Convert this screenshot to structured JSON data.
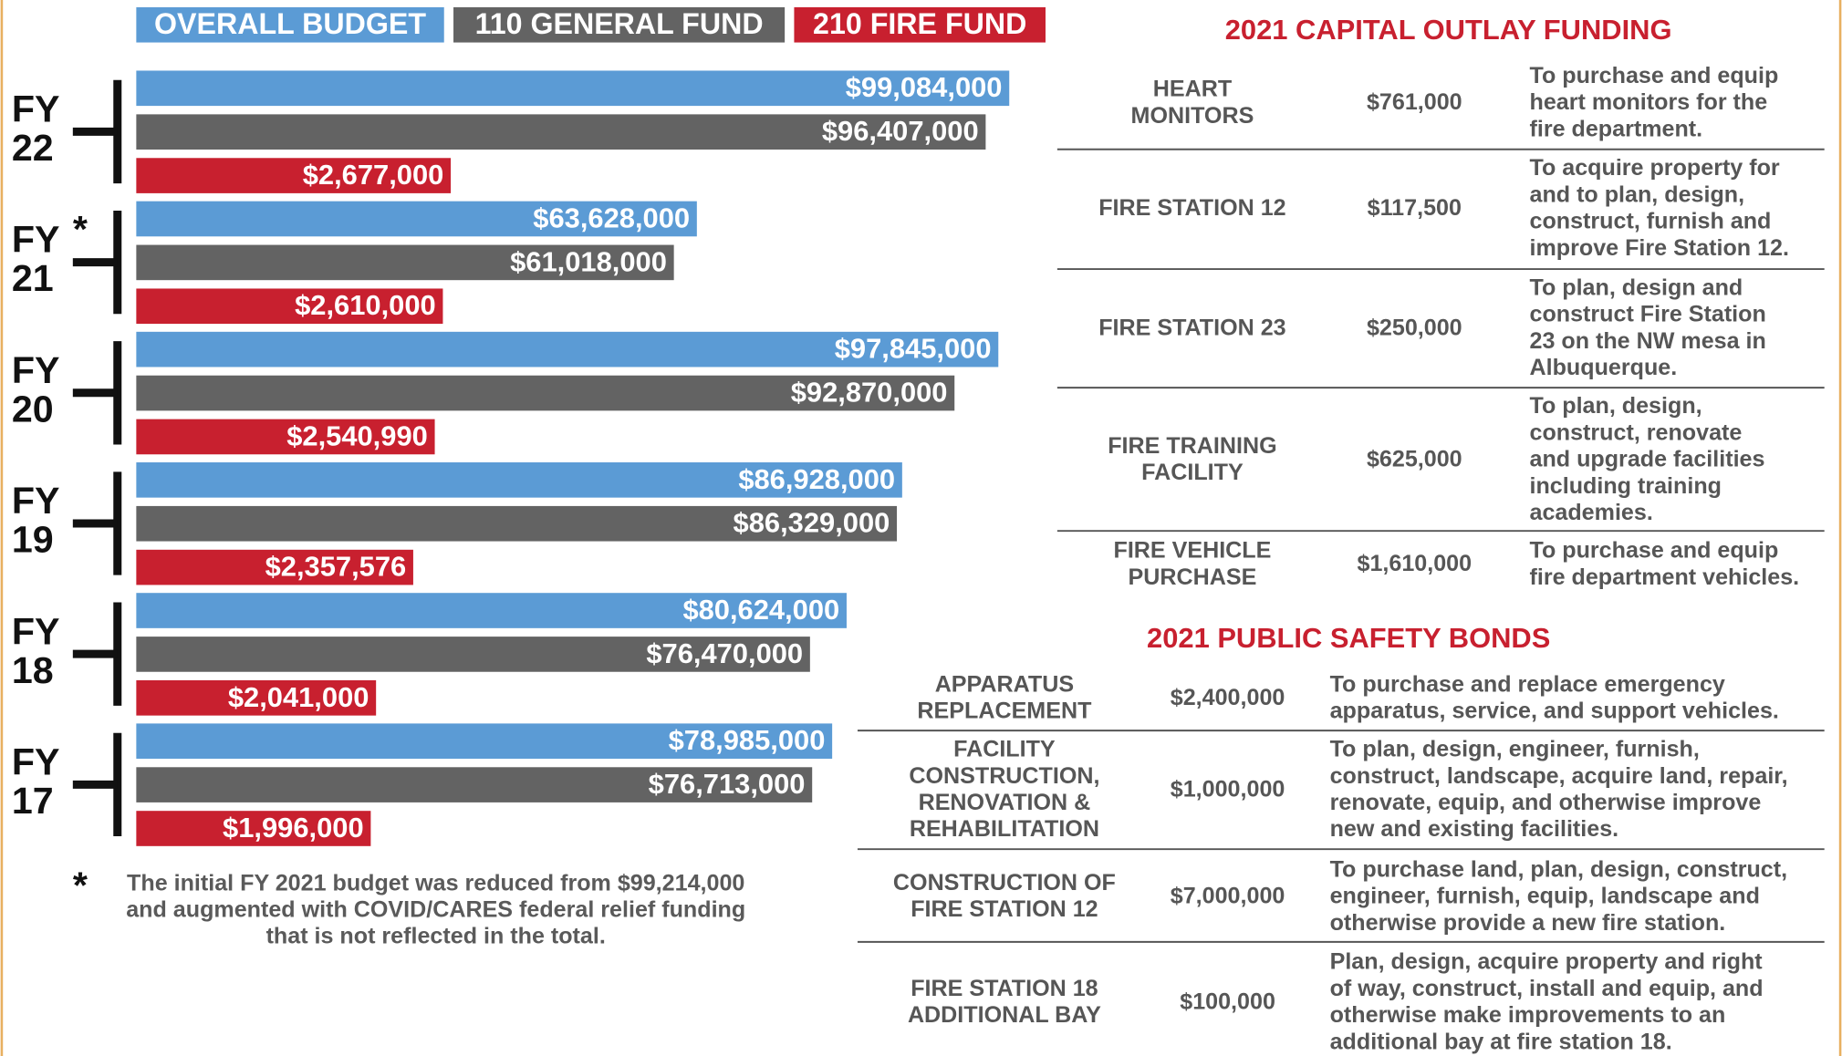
{
  "chart_data": {
    "type": "bar",
    "orientation": "horizontal",
    "categories": [
      "FY 22",
      "FY 21",
      "FY 20",
      "FY 19",
      "FY 18",
      "FY 17"
    ],
    "series": [
      {
        "name": "OVERALL BUDGET",
        "color": "#5b9bd5",
        "values": [
          99084000,
          63628000,
          97845000,
          86928000,
          80624000,
          78985000
        ],
        "value_labels": [
          "$99,084,000",
          "$63,628,000",
          "$97,845,000",
          "$86,928,000",
          "$80,624,000",
          "$78,985,000"
        ]
      },
      {
        "name": "110 GENERAL FUND",
        "color": "#636363",
        "values": [
          96407000,
          61018000,
          92870000,
          86329000,
          76470000,
          76713000
        ],
        "value_labels": [
          "$96,407,000",
          "$61,018,000",
          "$92,870,000",
          "$86,329,000",
          "$76,470,000",
          "$76,713,000"
        ]
      },
      {
        "name": "210 FIRE FUND",
        "color": "#c8202f",
        "axis": "x2",
        "values": [
          2677000,
          2610000,
          2540990,
          2357576,
          2041000,
          1996000
        ],
        "value_labels": [
          "$2,677,000",
          "$2,610,000",
          "$2,540,990",
          "$2,357,576",
          "$2,041,000",
          "$1,996,000"
        ]
      }
    ],
    "xlim": [
      0,
      100000000
    ],
    "x2lim": [
      0,
      7500000
    ],
    "annotation": {
      "marker": "*",
      "category_index": 1,
      "lines": [
        "The initial FY 2021 budget was reduced from $99,214,000",
        "and augmented with COVID/CARES federal relief funding",
        "that is not reflected in the total."
      ]
    }
  },
  "capital_outlay": {
    "title": "2021 CAPITAL OUTLAY FUNDING",
    "rows": [
      {
        "name": [
          "HEART",
          "MONITORS"
        ],
        "amount": "$761,000",
        "description": [
          "To purchase and equip",
          "heart monitors for the",
          "fire department."
        ]
      },
      {
        "name": [
          "FIRE STATION 12"
        ],
        "amount": "$117,500",
        "description": [
          "To acquire property for",
          "and to plan, design,",
          "construct, furnish and",
          "improve Fire Station 12."
        ]
      },
      {
        "name": [
          "FIRE STATION 23"
        ],
        "amount": "$250,000",
        "description": [
          "To plan, design and",
          "construct Fire Station",
          "23 on the NW mesa in",
          "Albuquerque."
        ]
      },
      {
        "name": [
          "FIRE TRAINING",
          "FACILITY"
        ],
        "amount": "$625,000",
        "description": [
          "To plan, design,",
          "construct, renovate",
          "and upgrade facilities",
          "including training",
          "academies."
        ]
      },
      {
        "name": [
          "FIRE VEHICLE",
          "PURCHASE"
        ],
        "amount": "$1,610,000",
        "description": [
          "To purchase and equip",
          "fire department vehicles."
        ]
      }
    ]
  },
  "public_safety_bonds": {
    "title": "2021 PUBLIC SAFETY BONDS",
    "rows": [
      {
        "name": [
          "APPARATUS",
          "REPLACEMENT"
        ],
        "amount": "$2,400,000",
        "description": [
          "To purchase and replace emergency",
          "apparatus, service, and support vehicles."
        ]
      },
      {
        "name": [
          "FACILITY",
          "CONSTRUCTION,",
          "RENOVATION &",
          "REHABILITATION"
        ],
        "amount": "$1,000,000",
        "description": [
          "To plan, design, engineer, furnish,",
          "construct, landscape, acquire land, repair,",
          "renovate, equip, and otherwise improve",
          "new and existing facilities."
        ]
      },
      {
        "name": [
          "CONSTRUCTION OF",
          "FIRE STATION 12"
        ],
        "amount": "$7,000,000",
        "description": [
          "To purchase land, plan, design, construct,",
          "engineer, furnish, equip, landscape and",
          "otherwise provide a new fire station."
        ]
      },
      {
        "name": [
          "FIRE STATION 18",
          "ADDITIONAL BAY"
        ],
        "amount": "$100,000",
        "description": [
          "Plan, design, acquire property and right",
          "of way, construct, install and equip, and",
          "otherwise make improvements to an",
          "additional bay at fire station 18."
        ]
      }
    ]
  }
}
